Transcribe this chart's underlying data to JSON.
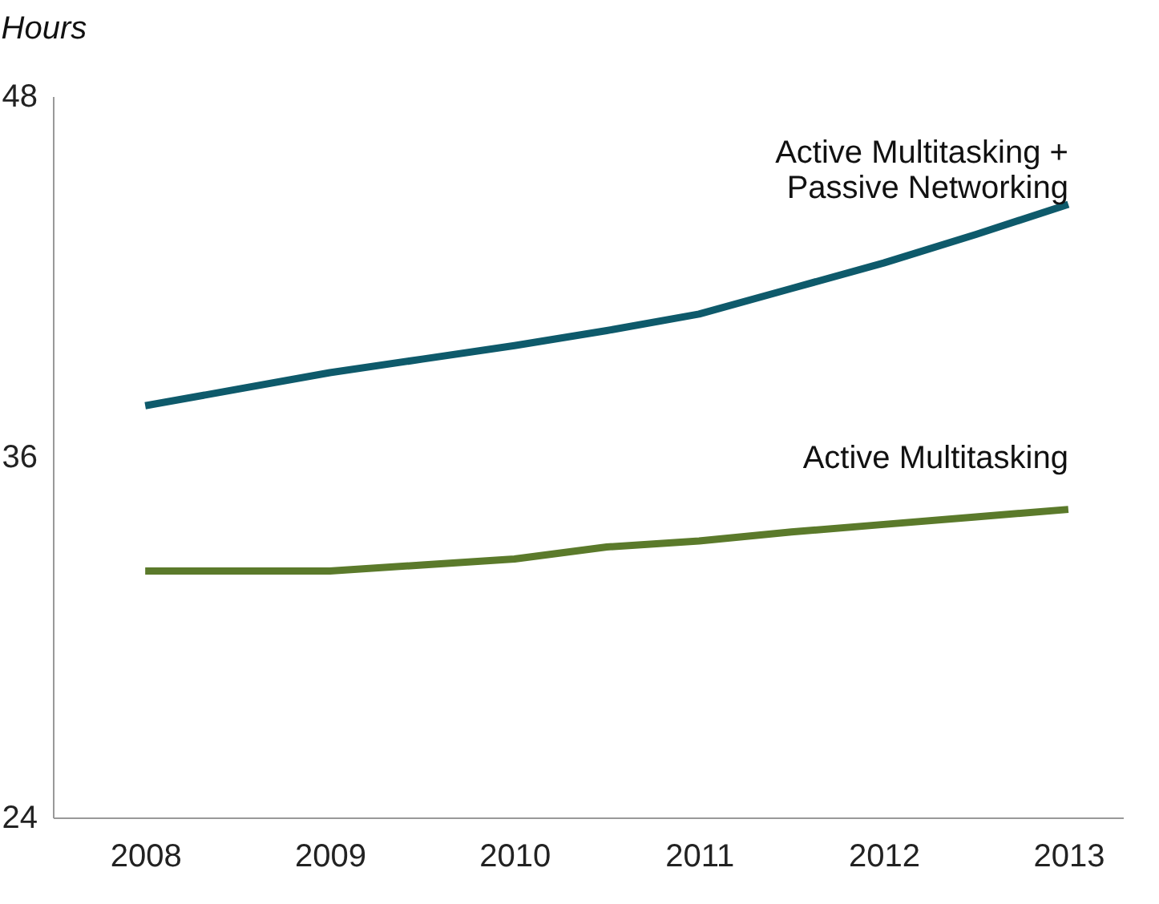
{
  "chart_data": {
    "type": "line",
    "ylabel": "Hours",
    "x": [
      2008,
      2008.5,
      2009,
      2009.5,
      2010,
      2010.5,
      2011,
      2011.5,
      2012,
      2012.5,
      2013
    ],
    "series": [
      {
        "name": "Active Multitasking +\nPassive Networking",
        "color": "#0e5a6b",
        "values": [
          37.7,
          38.25,
          38.8,
          39.25,
          39.7,
          40.2,
          40.75,
          41.6,
          42.45,
          43.4,
          44.4
        ]
      },
      {
        "name": "Active Multitasking",
        "color": "#5b7a2b",
        "values": [
          32.2,
          32.2,
          32.2,
          32.4,
          32.6,
          33.0,
          33.2,
          33.5,
          33.75,
          34.0,
          34.25
        ]
      }
    ],
    "xlim": [
      2007.5,
      2013.3
    ],
    "xticks": [
      2008,
      2009,
      2010,
      2011,
      2012,
      2013
    ],
    "ylim": [
      24,
      48
    ],
    "yticks": [
      24,
      36,
      48
    ],
    "grid": false,
    "legend": false,
    "marker": "none",
    "line_style": "solid"
  }
}
